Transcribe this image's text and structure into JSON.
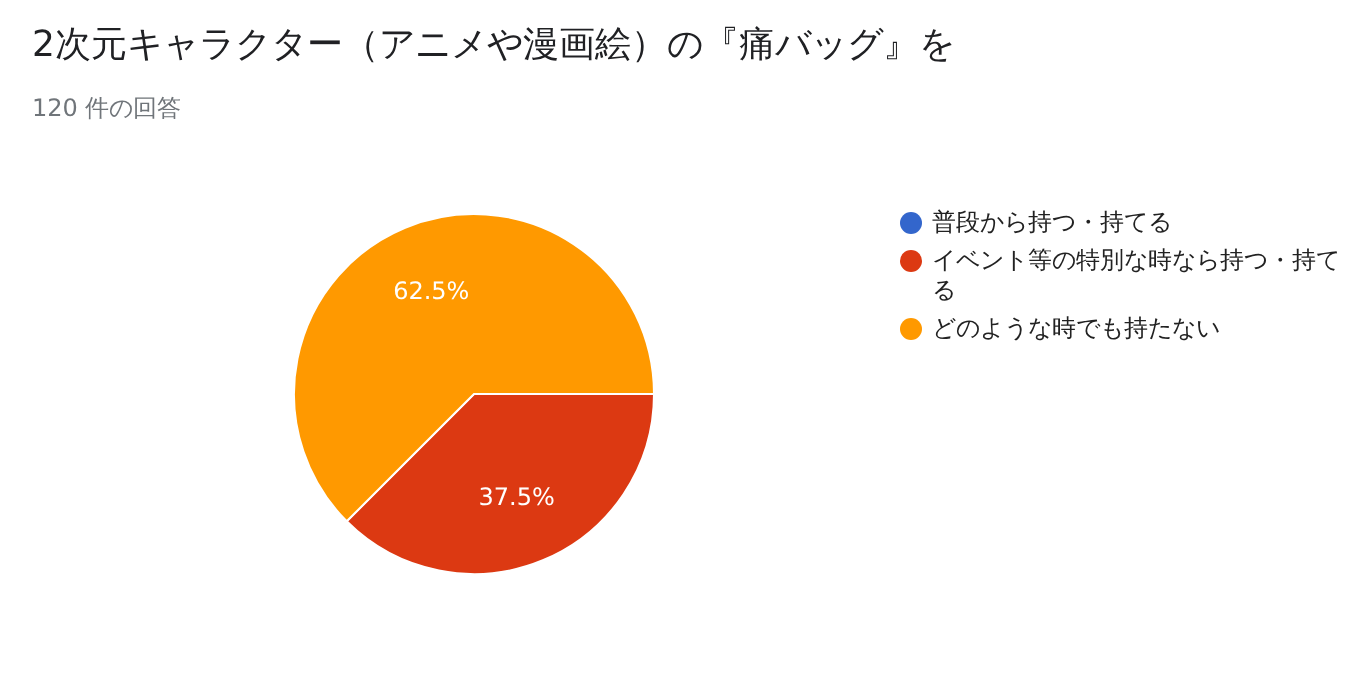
{
  "chart_data": {
    "type": "pie",
    "title": "2次元キャラクター（アニメや漫画絵）の『痛バッグ』を",
    "subtitle": "120 件の回答",
    "categories": [
      "普段から持つ・持てる",
      "イベント等の特別な時なら持つ・持てる",
      "どのような時でも持たない"
    ],
    "values": [
      0,
      37.5,
      62.5
    ],
    "colors": [
      "#3366cc",
      "#dc3912",
      "#ff9900"
    ],
    "value_labels": [
      null,
      "37.5%",
      "62.5%"
    ],
    "legend": "right"
  }
}
